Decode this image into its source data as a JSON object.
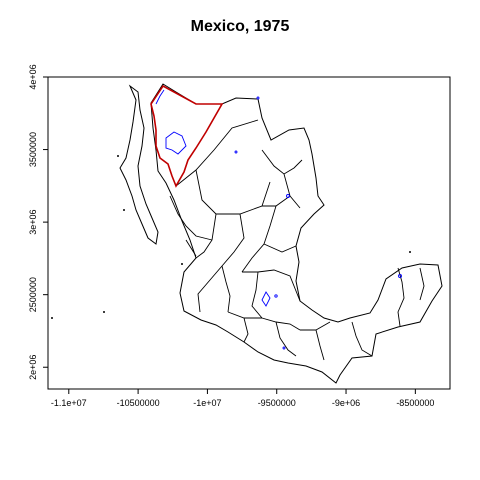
{
  "title": "Mexico, 1975",
  "colors": {
    "boundary": "#000000",
    "highlight": "#c00000",
    "water": "#0000ff"
  },
  "axes": {
    "x_ticks": [
      "-1.1e+07",
      "-10500000",
      "-1e+07",
      "-9500000",
      "-9e+06",
      "-8500000"
    ],
    "y_ticks": [
      "2e+06",
      "2500000",
      "3e+06",
      "3500000",
      "4e+06"
    ]
  },
  "chart_data": {
    "type": "map",
    "title": "Mexico, 1975",
    "xlim": [
      -11150000,
      -8250000
    ],
    "ylim": [
      1850000,
      4000000
    ],
    "x_ticks": [
      -11000000,
      -10500000,
      -10000000,
      -9500000,
      -9000000,
      -8500000
    ],
    "y_ticks": [
      2000000,
      2500000,
      3000000,
      3500000,
      4000000
    ],
    "highlighted_region": "northwest state outlined in red",
    "grid": false
  }
}
